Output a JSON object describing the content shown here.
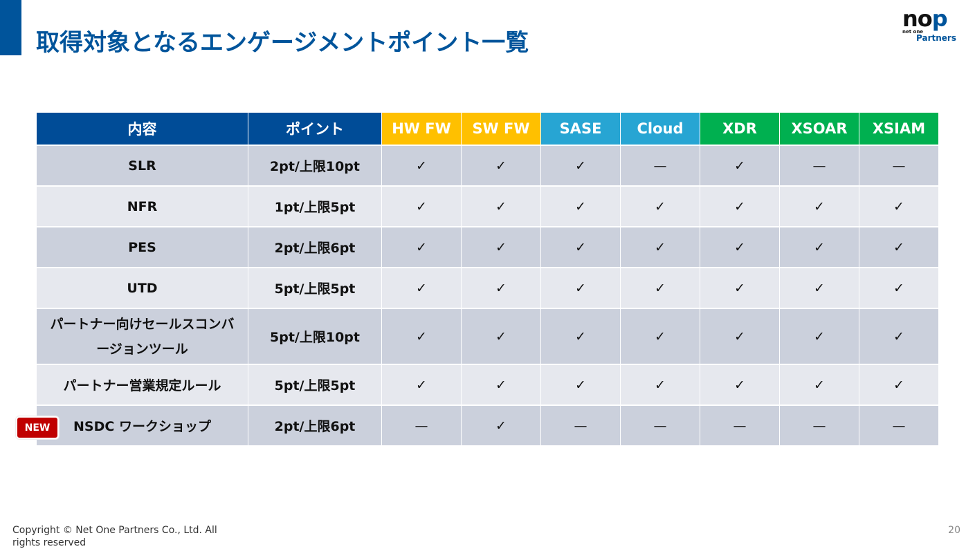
{
  "title": "取得対象となるエンゲージメントポイント一覧",
  "logo": {
    "text": "nop",
    "sub": "net one",
    "name": "Partners"
  },
  "colors": {
    "navy": "#004c97",
    "fw": "#ffc000",
    "sase": "#27a5d3",
    "xdr": "#00b050"
  },
  "headers": [
    {
      "label": "内容",
      "color": "#004c97"
    },
    {
      "label": "ポイント",
      "color": "#004c97"
    },
    {
      "label": "HW FW",
      "color": "#ffc000"
    },
    {
      "label": "SW FW",
      "color": "#ffc000"
    },
    {
      "label": "SASE",
      "color": "#27a5d3"
    },
    {
      "label": "Cloud",
      "color": "#27a5d3"
    },
    {
      "label": "XDR",
      "color": "#00b050"
    },
    {
      "label": "XSOAR",
      "color": "#00b050"
    },
    {
      "label": "XSIAM",
      "color": "#00b050"
    }
  ],
  "rows": [
    {
      "name": "SLR",
      "points": "2pt/上限10pt",
      "marks": [
        "✓",
        "✓",
        "✓",
        "—",
        "✓",
        "—",
        "—"
      ]
    },
    {
      "name": "NFR",
      "points": "1pt/上限5pt",
      "marks": [
        "✓",
        "✓",
        "✓",
        "✓",
        "✓",
        "✓",
        "✓"
      ]
    },
    {
      "name": "PES",
      "points": "2pt/上限6pt",
      "marks": [
        "✓",
        "✓",
        "✓",
        "✓",
        "✓",
        "✓",
        "✓"
      ]
    },
    {
      "name": "UTD",
      "points": "5pt/上限5pt",
      "marks": [
        "✓",
        "✓",
        "✓",
        "✓",
        "✓",
        "✓",
        "✓"
      ]
    },
    {
      "name": "パートナー向けセールスコンバージョンツール",
      "points": "5pt/上限10pt",
      "marks": [
        "✓",
        "✓",
        "✓",
        "✓",
        "✓",
        "✓",
        "✓"
      ]
    },
    {
      "name": "パートナー営業規定ルール",
      "points": "5pt/上限5pt",
      "marks": [
        "✓",
        "✓",
        "✓",
        "✓",
        "✓",
        "✓",
        "✓"
      ]
    },
    {
      "name": "NSDC ワークショップ",
      "points": "2pt/上限6pt",
      "marks": [
        "—",
        "✓",
        "—",
        "—",
        "—",
        "—",
        "—"
      ]
    }
  ],
  "badge": "NEW",
  "footer": {
    "copyright": "Copyright © Net One Partners Co., Ltd. All rights reserved",
    "page": "20"
  }
}
